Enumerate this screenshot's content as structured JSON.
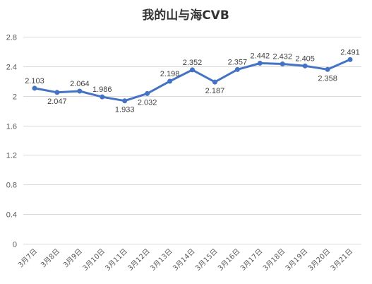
{
  "chart_data": {
    "type": "line",
    "title": "我的山与海CVB",
    "xlabel": "",
    "ylabel": "",
    "ylim": [
      0,
      2.8
    ],
    "yticks": [
      0,
      0.4,
      0.8,
      1.2,
      1.6,
      2,
      2.4,
      2.8
    ],
    "ytick_labels": [
      "0",
      "0.4",
      "0.8",
      "1.2",
      "1.6",
      "2",
      "2.4",
      "2.8"
    ],
    "grid": true,
    "legend": "none",
    "categories": [
      "3月7日",
      "3月8日",
      "3月9日",
      "3月10日",
      "3月11日",
      "3月12日",
      "3月13日",
      "3月14日",
      "3月15日",
      "3月16日",
      "3月17日",
      "3月18日",
      "3月19日",
      "3月20日",
      "3月21日"
    ],
    "series": [
      {
        "values": [
          2.103,
          2.047,
          2.064,
          1.986,
          1.933,
          2.032,
          2.198,
          2.352,
          2.187,
          2.357,
          2.442,
          2.432,
          2.405,
          2.358,
          2.491
        ],
        "labels": [
          "2.103",
          "2.047",
          "2.064",
          "1.986",
          "1.933",
          "2.032",
          "2.198",
          "2.352",
          "2.187",
          "2.357",
          "2.442",
          "2.432",
          "2.405",
          "2.358",
          "2.491"
        ],
        "color": "#4472c4"
      }
    ]
  }
}
